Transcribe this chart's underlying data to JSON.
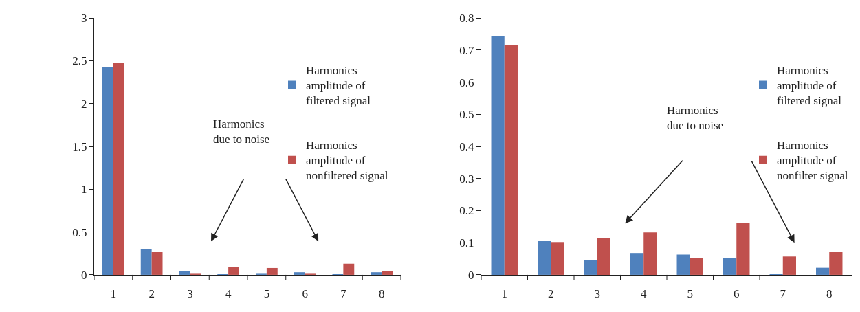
{
  "chart_data": [
    {
      "type": "bar",
      "categories": [
        "1",
        "2",
        "3",
        "4",
        "5",
        "6",
        "7",
        "8"
      ],
      "ylim": [
        0,
        3
      ],
      "yticks": [
        0,
        0.5,
        1,
        1.5,
        2,
        2.5,
        3
      ],
      "legend": "right",
      "annotations": [
        "Harmonics due to noise"
      ],
      "series": [
        {
          "name": "Harmonics amplitude of filtered signal",
          "color": "#4f81bd",
          "values": [
            2.43,
            0.3,
            0.04,
            0.01,
            0.02,
            0.03,
            0.01,
            0.03
          ]
        },
        {
          "name": "Harmonics amplitude of nonfiltered signal",
          "color": "#c0504d",
          "values": [
            2.48,
            0.27,
            0.02,
            0.09,
            0.08,
            0.02,
            0.13,
            0.04
          ]
        }
      ]
    },
    {
      "type": "bar",
      "categories": [
        "1",
        "2",
        "3",
        "4",
        "5",
        "6",
        "7",
        "8"
      ],
      "ylim": [
        0,
        0.8
      ],
      "yticks": [
        0,
        0.1,
        0.2,
        0.3,
        0.4,
        0.5,
        0.6,
        0.7,
        0.8
      ],
      "legend": "right",
      "annotations": [
        "Harmonics due to noise"
      ],
      "series": [
        {
          "name": "Harmonics amplitude of filtered signal",
          "color": "#4f81bd",
          "values": [
            0.745,
            0.105,
            0.046,
            0.068,
            0.063,
            0.052,
            0.004,
            0.022
          ]
        },
        {
          "name": "Harmonics amplitude of nonfilter signal",
          "color": "#c0504d",
          "values": [
            0.715,
            0.102,
            0.115,
            0.132,
            0.053,
            0.162,
            0.057,
            0.071
          ]
        }
      ]
    }
  ]
}
